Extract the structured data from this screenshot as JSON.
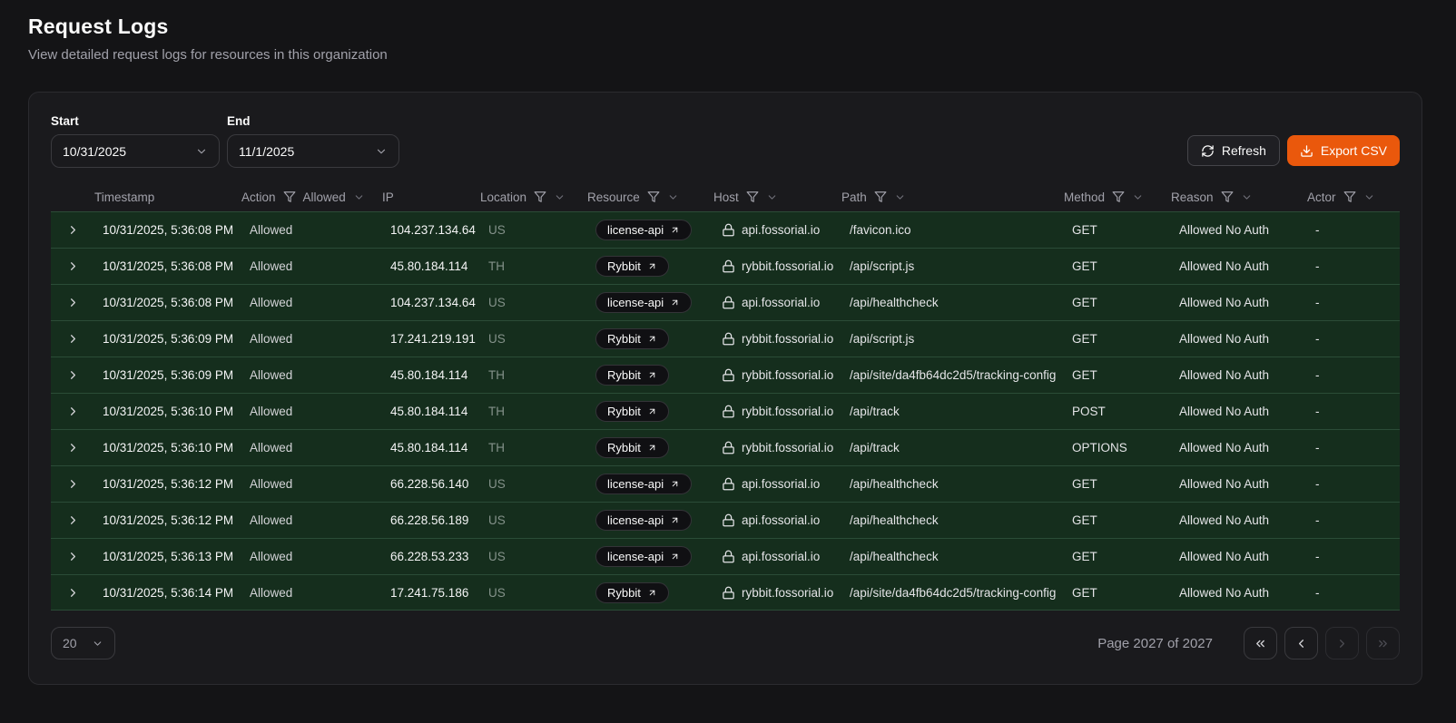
{
  "page": {
    "title": "Request Logs",
    "subtitle": "View detailed request logs for resources in this organization"
  },
  "toolbar": {
    "start_label": "Start",
    "start_value": "10/31/2025",
    "end_label": "End",
    "end_value": "11/1/2025",
    "refresh_label": "Refresh",
    "export_label": "Export CSV"
  },
  "colors": {
    "accent": "#ea580c",
    "row_highlight": "#152e1d",
    "panel_bg": "#1a1a1d",
    "page_bg": "#141416"
  },
  "table": {
    "columns": [
      {
        "key": "expand",
        "label": "",
        "filter": false
      },
      {
        "key": "timestamp",
        "label": "Timestamp",
        "filter": false
      },
      {
        "key": "action",
        "label": "Action",
        "filter": true,
        "filter_value": "Allowed"
      },
      {
        "key": "ip",
        "label": "IP",
        "filter": false
      },
      {
        "key": "location",
        "label": "Location",
        "filter": true
      },
      {
        "key": "resource",
        "label": "Resource",
        "filter": true
      },
      {
        "key": "host",
        "label": "Host",
        "filter": true
      },
      {
        "key": "path",
        "label": "Path",
        "filter": true
      },
      {
        "key": "method",
        "label": "Method",
        "filter": true
      },
      {
        "key": "reason",
        "label": "Reason",
        "filter": true
      },
      {
        "key": "actor",
        "label": "Actor",
        "filter": true
      }
    ],
    "rows": [
      {
        "timestamp": "10/31/2025, 5:36:08 PM",
        "action": "Allowed",
        "ip": "104.237.134.64",
        "location": "US",
        "resource": "license-api",
        "host": "api.fossorial.io",
        "path": "/favicon.ico",
        "method": "GET",
        "reason": "Allowed No Auth",
        "actor": "-"
      },
      {
        "timestamp": "10/31/2025, 5:36:08 PM",
        "action": "Allowed",
        "ip": "45.80.184.114",
        "location": "TH",
        "resource": "Rybbit",
        "host": "rybbit.fossorial.io",
        "path": "/api/script.js",
        "method": "GET",
        "reason": "Allowed No Auth",
        "actor": "-"
      },
      {
        "timestamp": "10/31/2025, 5:36:08 PM",
        "action": "Allowed",
        "ip": "104.237.134.64",
        "location": "US",
        "resource": "license-api",
        "host": "api.fossorial.io",
        "path": "/api/healthcheck",
        "method": "GET",
        "reason": "Allowed No Auth",
        "actor": "-"
      },
      {
        "timestamp": "10/31/2025, 5:36:09 PM",
        "action": "Allowed",
        "ip": "17.241.219.191",
        "location": "US",
        "resource": "Rybbit",
        "host": "rybbit.fossorial.io",
        "path": "/api/script.js",
        "method": "GET",
        "reason": "Allowed No Auth",
        "actor": "-"
      },
      {
        "timestamp": "10/31/2025, 5:36:09 PM",
        "action": "Allowed",
        "ip": "45.80.184.114",
        "location": "TH",
        "resource": "Rybbit",
        "host": "rybbit.fossorial.io",
        "path": "/api/site/da4fb64dc2d5/tracking-config",
        "method": "GET",
        "reason": "Allowed No Auth",
        "actor": "-"
      },
      {
        "timestamp": "10/31/2025, 5:36:10 PM",
        "action": "Allowed",
        "ip": "45.80.184.114",
        "location": "TH",
        "resource": "Rybbit",
        "host": "rybbit.fossorial.io",
        "path": "/api/track",
        "method": "POST",
        "reason": "Allowed No Auth",
        "actor": "-"
      },
      {
        "timestamp": "10/31/2025, 5:36:10 PM",
        "action": "Allowed",
        "ip": "45.80.184.114",
        "location": "TH",
        "resource": "Rybbit",
        "host": "rybbit.fossorial.io",
        "path": "/api/track",
        "method": "OPTIONS",
        "reason": "Allowed No Auth",
        "actor": "-"
      },
      {
        "timestamp": "10/31/2025, 5:36:12 PM",
        "action": "Allowed",
        "ip": "66.228.56.140",
        "location": "US",
        "resource": "license-api",
        "host": "api.fossorial.io",
        "path": "/api/healthcheck",
        "method": "GET",
        "reason": "Allowed No Auth",
        "actor": "-"
      },
      {
        "timestamp": "10/31/2025, 5:36:12 PM",
        "action": "Allowed",
        "ip": "66.228.56.189",
        "location": "US",
        "resource": "license-api",
        "host": "api.fossorial.io",
        "path": "/api/healthcheck",
        "method": "GET",
        "reason": "Allowed No Auth",
        "actor": "-"
      },
      {
        "timestamp": "10/31/2025, 5:36:13 PM",
        "action": "Allowed",
        "ip": "66.228.53.233",
        "location": "US",
        "resource": "license-api",
        "host": "api.fossorial.io",
        "path": "/api/healthcheck",
        "method": "GET",
        "reason": "Allowed No Auth",
        "actor": "-"
      },
      {
        "timestamp": "10/31/2025, 5:36:14 PM",
        "action": "Allowed",
        "ip": "17.241.75.186",
        "location": "US",
        "resource": "Rybbit",
        "host": "rybbit.fossorial.io",
        "path": "/api/site/da4fb64dc2d5/tracking-config",
        "method": "GET",
        "reason": "Allowed No Auth",
        "actor": "-"
      }
    ]
  },
  "pagination": {
    "page_size": "20",
    "page_label": "Page 2027 of 2027",
    "first_enabled": true,
    "prev_enabled": true,
    "next_enabled": false,
    "last_enabled": false
  }
}
